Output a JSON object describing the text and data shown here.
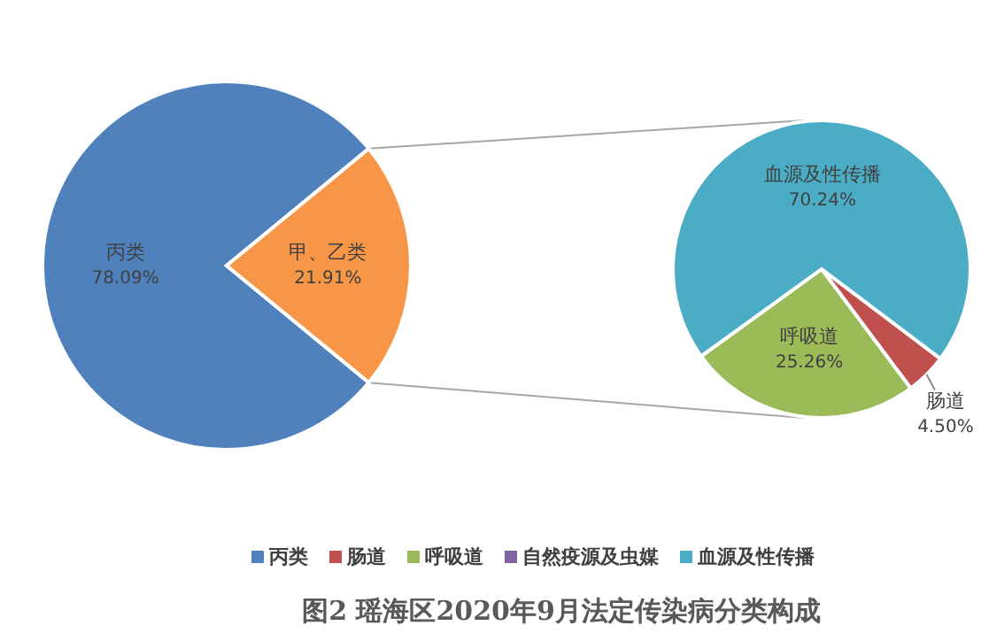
{
  "chart_data": [
    {
      "type": "pie",
      "title": "图2  瑶海区2020年9月法定传染病分类构成",
      "categories": [
        "丙类",
        "甲、乙类"
      ],
      "values": [
        78.09,
        21.91
      ],
      "colors": [
        "#4f81bd",
        "#f79646"
      ],
      "value_labels": [
        "78.09%",
        "21.91%"
      ],
      "legend": "bottom"
    },
    {
      "type": "pie",
      "categories": [
        "肠道",
        "呼吸道",
        "自然疫源及虫媒",
        "血源及性传播"
      ],
      "values": [
        4.5,
        25.26,
        0,
        70.24
      ],
      "colors": [
        "#c0504d",
        "#9bbb59",
        "#8064a2",
        "#4bacc6"
      ],
      "value_labels": [
        "4.50%",
        "25.26%",
        null,
        "70.24%"
      ],
      "legend": "bottom"
    }
  ]
}
